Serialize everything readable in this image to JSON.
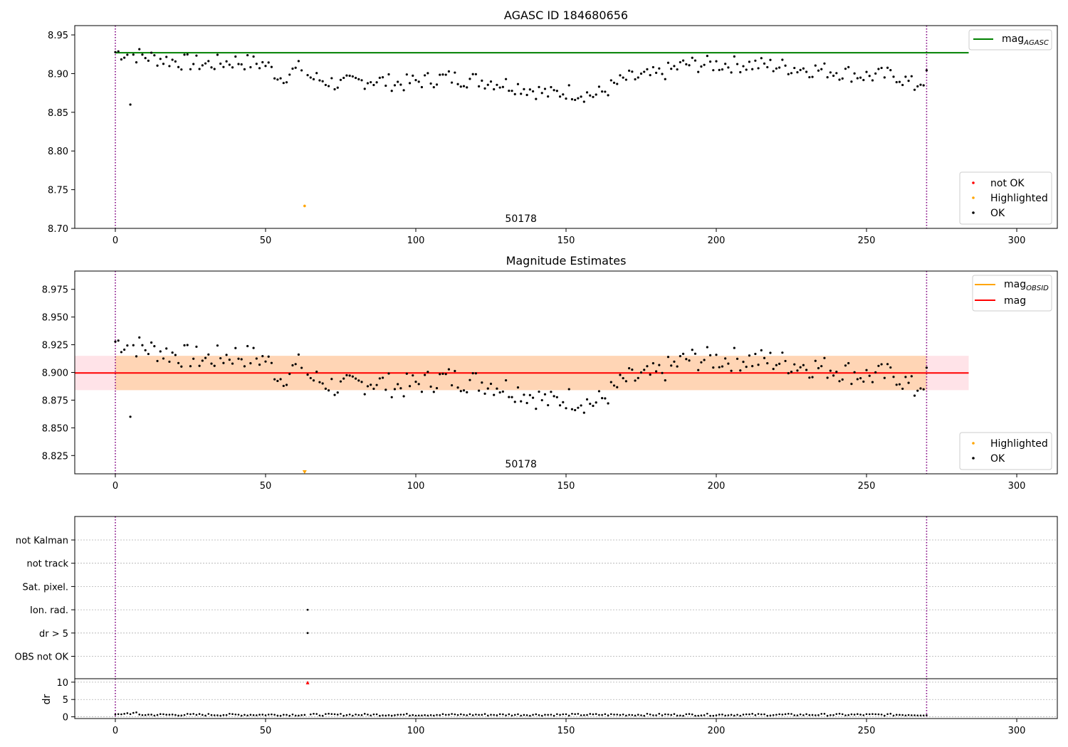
{
  "figure": {
    "vlines_x": [
      0,
      270
    ],
    "vline_color": "#800080"
  },
  "chart_data": [
    {
      "type": "scatter",
      "title": "AGASC ID 184680656",
      "annotation": "50178",
      "annotation_x": 135,
      "xlim": [
        -13.5,
        313.5
      ],
      "ylim": [
        8.7,
        8.962
      ],
      "xticks": [
        0,
        50,
        100,
        150,
        200,
        250,
        300
      ],
      "yticks": [
        "8.70",
        "8.75",
        "8.80",
        "8.85",
        "8.90",
        "8.95"
      ],
      "hline": {
        "name": "mag_AGASC",
        "label_main": "mag",
        "label_sub": "AGASC",
        "y": 8.927,
        "x_end": 284,
        "color": "#008000"
      },
      "legend_scatter": [
        {
          "label": "not OK",
          "color": "#ff0000"
        },
        {
          "label": "Highlighted",
          "color": "#ffa500"
        },
        {
          "label": "OK",
          "color": "#000000"
        }
      ],
      "highlighted_points": [
        {
          "x": 63,
          "y": 8.729
        }
      ],
      "outlier_points": [
        {
          "x": 5,
          "y": 8.86
        }
      ],
      "series_profile": [
        [
          0,
          8.928
        ],
        [
          10,
          8.922
        ],
        [
          20,
          8.916
        ],
        [
          30,
          8.912
        ],
        [
          40,
          8.916
        ],
        [
          50,
          8.912
        ],
        [
          55,
          8.895
        ],
        [
          62,
          8.908
        ],
        [
          65,
          8.895
        ],
        [
          75,
          8.886
        ],
        [
          85,
          8.892
        ],
        [
          95,
          8.887
        ],
        [
          110,
          8.895
        ],
        [
          125,
          8.89
        ],
        [
          135,
          8.883
        ],
        [
          145,
          8.873
        ],
        [
          150,
          8.877
        ],
        [
          160,
          8.872
        ],
        [
          170,
          8.893
        ],
        [
          180,
          8.898
        ],
        [
          190,
          8.912
        ],
        [
          200,
          8.912
        ],
        [
          210,
          8.912
        ],
        [
          220,
          8.91
        ],
        [
          230,
          8.906
        ],
        [
          240,
          8.903
        ],
        [
          250,
          8.897
        ],
        [
          260,
          8.898
        ],
        [
          266,
          8.884
        ],
        [
          270,
          8.895
        ]
      ],
      "ok_color": "#000000"
    },
    {
      "type": "scatter",
      "title": "Magnitude Estimates",
      "annotation": "50178",
      "annotation_x": 135,
      "xlim": [
        -13.5,
        313.5
      ],
      "ylim": [
        8.8085,
        8.9915
      ],
      "xticks": [
        0,
        50,
        100,
        150,
        200,
        250,
        300
      ],
      "yticks": [
        "8.825",
        "8.850",
        "8.875",
        "8.900",
        "8.925",
        "8.950",
        "8.975"
      ],
      "mag_line": {
        "name": "mag",
        "y": 8.8995,
        "x_end": 284,
        "color": "#ff0000"
      },
      "mag_obsid": {
        "label_main": "mag",
        "label_sub": "OBSID",
        "color": "#ffa500"
      },
      "bands": [
        {
          "y0": 8.884,
          "y1": 8.915,
          "x0": -13.5,
          "x1": 284,
          "color": "#ffc0cb",
          "opacity": 0.45
        },
        {
          "y0": 8.884,
          "y1": 8.915,
          "x0": 0,
          "x1": 270,
          "color": "#ffa500",
          "opacity": 0.22
        }
      ],
      "legend_scatter": [
        {
          "label": "Highlighted",
          "color": "#ffa500"
        },
        {
          "label": "OK",
          "color": "#000000"
        }
      ],
      "highlighted_points": [
        {
          "x": 63,
          "y": 8.81
        }
      ],
      "outlier_points": [
        {
          "x": 5,
          "y": 8.86
        }
      ]
    },
    {
      "type": "scatter",
      "flags_xlim": [
        -13.5,
        313.5
      ],
      "flag_rows": [
        "not Kalman",
        "not track",
        "Sat. pixel.",
        "Ion. rad.",
        "dr > 5",
        "OBS not OK"
      ],
      "flag_points": [
        {
          "row": "Ion. rad.",
          "x": 64
        },
        {
          "row": "dr > 5",
          "x": 64
        }
      ],
      "dr": {
        "ylabel": "dr",
        "ylim": [
          -0.5,
          11
        ],
        "yticks": [
          0,
          5,
          10
        ],
        "xticks": [
          0,
          50,
          100,
          150,
          200,
          250,
          300
        ],
        "typical": 0.6,
        "high_point": {
          "x": 64,
          "y": 9.8,
          "color": "#ff0000"
        }
      }
    }
  ]
}
